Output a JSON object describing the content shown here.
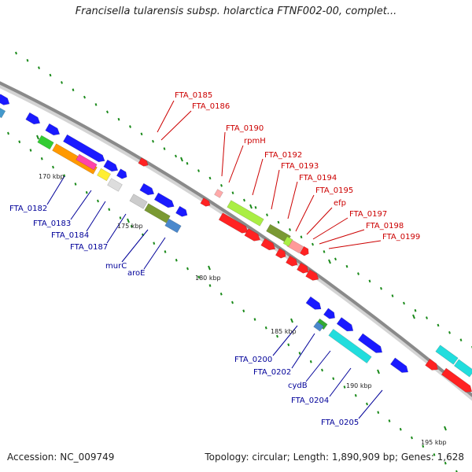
{
  "title": "Francisella tularensis subsp. holarctica FTNF002-00, complet...",
  "footer": {
    "accession": "Accession: NC_009749",
    "summary": "Topology: circular; Length: 1,890,909 bp; Genes: 1,628"
  },
  "colors": {
    "backbone": "#8a8a8a",
    "tick": "#1a8a1a",
    "forward_gene": "#0000e6",
    "reverse_gene": "#e60000",
    "forward_label": "#000099",
    "reverse_label": "#cc0000"
  },
  "kbp_labels": [
    "170 kbp",
    "175 kbp",
    "180 kbp",
    "185 kbp",
    "190 kbp",
    "195 kbp"
  ],
  "reverse_labels": [
    "FTA_0185",
    "FTA_0186",
    "FTA_0190",
    "rpmH",
    "FTA_0192",
    "FTA_0193",
    "FTA_0194",
    "FTA_0195",
    "efp",
    "FTA_0197",
    "FTA_0198",
    "FTA_0199"
  ],
  "forward_labels": [
    "FTA_0182",
    "FTA_0183",
    "FTA_0184",
    "FTA_0187",
    "murC",
    "aroE",
    "FTA_0200",
    "FTA_0202",
    "cydB",
    "FTA_0204",
    "FTA_0205"
  ]
}
